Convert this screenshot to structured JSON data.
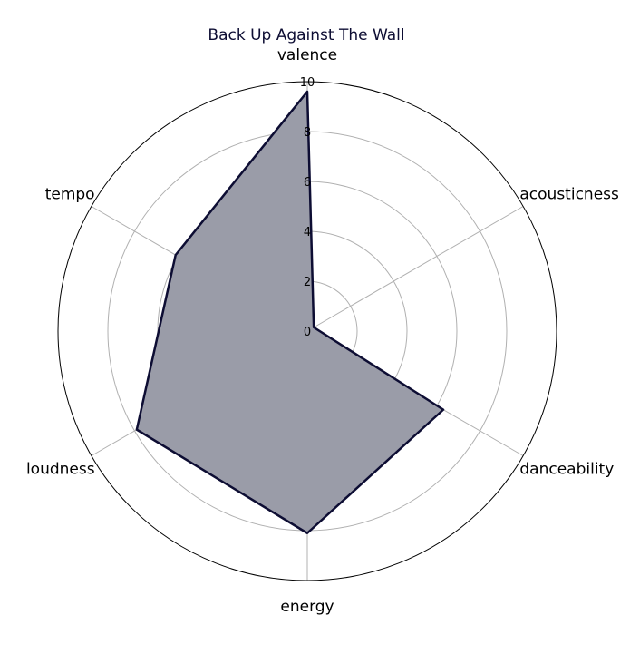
{
  "chart_data": {
    "type": "radar",
    "title": "Back Up Against The Wall",
    "axes": [
      "valence",
      "acousticness",
      "danceability",
      "energy",
      "loudness",
      "tempo"
    ],
    "values": [
      9.6,
      0.3,
      6.3,
      8.1,
      7.9,
      6.1
    ],
    "rlim": [
      0,
      10
    ],
    "rticks": [
      "0",
      "2",
      "4",
      "6",
      "8",
      "10"
    ],
    "grid": true,
    "colors": {
      "line": "#0d0d33",
      "fill": "#9a9ca8",
      "grid": "#b0b0b0",
      "outer": "#000000"
    }
  }
}
